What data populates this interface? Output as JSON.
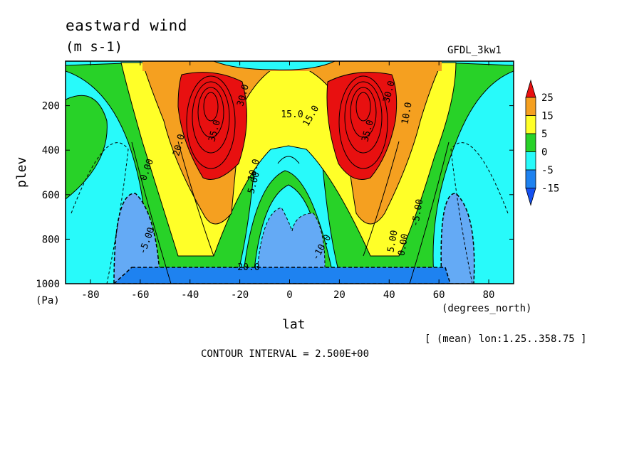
{
  "chart_data": {
    "type": "contour",
    "title": "eastward wind",
    "units": "(m s-1)",
    "model": "GFDL_3kw1",
    "xlabel": "lat",
    "xunits": "(degrees_north)",
    "ylabel": "plev",
    "yunits": "(Pa)",
    "averaging": "[ (mean) lon:1.25..358.75 ]",
    "contour_interval": "CONTOUR INTERVAL = 2.500E+00",
    "xlim": [
      -90,
      90
    ],
    "ylim": [
      1000,
      0
    ],
    "x_ticks": [
      -80,
      -60,
      -40,
      -20,
      0,
      20,
      40,
      60,
      80
    ],
    "y_ticks": [
      200,
      400,
      600,
      800,
      1000
    ],
    "colorbar": {
      "labels": [
        "25",
        "15",
        "5",
        "0",
        "-5",
        "-15"
      ],
      "colors": [
        "#e81010",
        "#f5a020",
        "#ffff28",
        "#28d228",
        "#28fafa",
        "#1e82f0",
        "#1450f0"
      ]
    },
    "contour_labels": [
      "35.0",
      "35.0",
      "30.0",
      "30.0",
      "20.0",
      "15.0",
      "15.0",
      "10.0",
      "10.0",
      "5.00",
      "5.00",
      "0.00",
      "0.00",
      "-5.00",
      "-5.00",
      "-10.0",
      "-20.0"
    ],
    "features": [
      {
        "name": "southern jet",
        "lat": -32,
        "plev": 200,
        "max_value": 35
      },
      {
        "name": "northern jet",
        "lat": 30,
        "plev": 200,
        "max_value": 35
      }
    ]
  },
  "labels": {
    "title": "eastward wind",
    "units": "(m s-1)",
    "model": "GFDL_3kw1",
    "xlabel": "lat",
    "xunits": "(degrees_north)",
    "ylabel": "plev",
    "yunits": "(Pa)",
    "averaging": "[ (mean) lon:1.25..358.75 ]",
    "interval": "CONTOUR INTERVAL = 2.500E+00"
  }
}
